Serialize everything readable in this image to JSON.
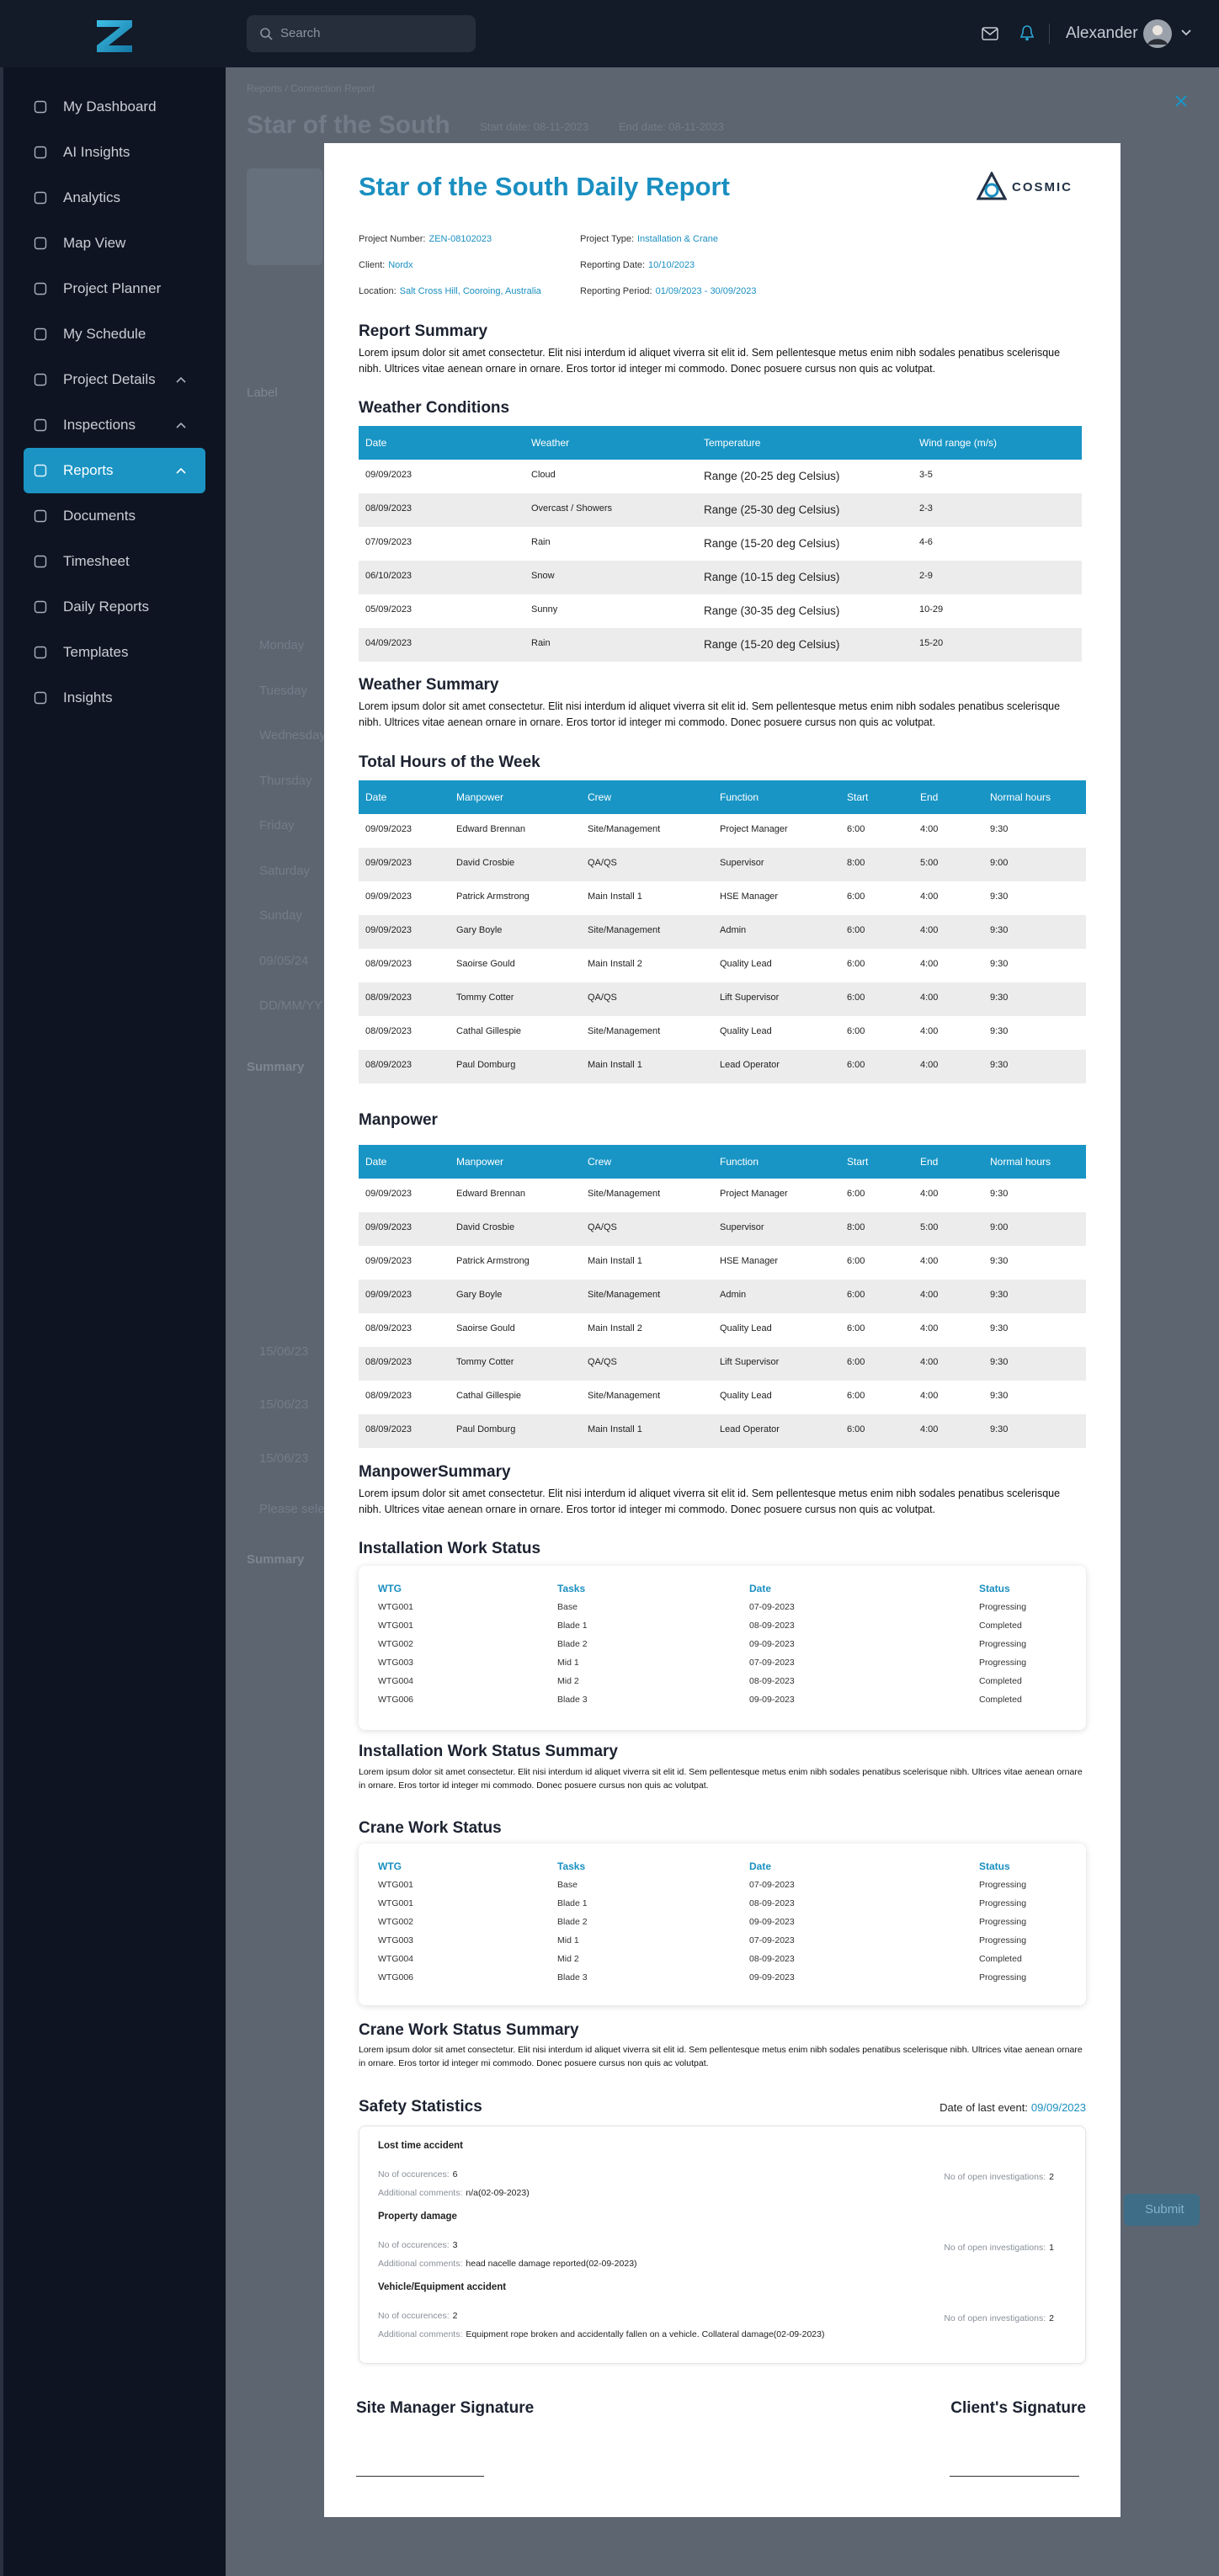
{
  "topbar": {
    "search_placeholder": "Search",
    "user_name": "Alexander"
  },
  "sidebar": {
    "items": [
      {
        "label": "My Dashboard"
      },
      {
        "label": "AI Insights"
      },
      {
        "label": "Analytics"
      },
      {
        "label": "Map View"
      },
      {
        "label": "Project Planner"
      },
      {
        "label": "My Schedule"
      },
      {
        "label": "Project Details",
        "expandable": true
      },
      {
        "label": "Inspections",
        "expandable": true
      },
      {
        "label": "Reports",
        "expandable": true,
        "active": true
      },
      {
        "label": "Documents"
      },
      {
        "label": "Timesheet"
      },
      {
        "label": "Daily Reports"
      },
      {
        "label": "Templates"
      },
      {
        "label": "Insights"
      }
    ]
  },
  "background": {
    "breadcrumb": "Reports / Connection Report",
    "title": "Star of the South",
    "start_date": "Start date: 08-11-2023",
    "end_date": "End date: 08-11-2023",
    "label": "Label",
    "days": [
      "Monday",
      "Tuesday",
      "Wednesday",
      "Thursday",
      "Friday",
      "Saturday",
      "Sunday",
      "09/05/24",
      "DD/MM/YY"
    ],
    "summary_headings": [
      "Summary",
      "Summary"
    ],
    "dates": [
      "15/06/23",
      "15/06/23",
      "15/06/23"
    ],
    "select_placeholder": "Please select",
    "submit": "Submit"
  },
  "report": {
    "title": "Star of the South Daily Report",
    "logo_text": "COSMIC",
    "info": [
      {
        "label": "Project Number:",
        "value": "ZEN-08102023"
      },
      {
        "label": "Project Type:",
        "value": "Installation & Crane"
      },
      {
        "label": "Client:",
        "value": "Nordx"
      },
      {
        "label": "Reporting Date:",
        "value": "10/10/2023"
      },
      {
        "label": "Location:",
        "value": "Salt Cross Hill, Cooroing, Australia"
      },
      {
        "label": "Reporting Period:",
        "value": "01/09/2023 - 30/09/2023"
      }
    ],
    "report_summary": {
      "heading": "Report Summary",
      "text": "Lorem ipsum dolor sit amet consectetur. Elit nisi interdum id aliquet viverra sit elit id. Sem pellentesque metus enim nibh sodales penatibus scelerisque nibh. Ultrices vitae aenean ornare in ornare. Eros tortor id integer mi commodo. Donec posuere cursus non quis ac volutpat."
    },
    "weather": {
      "heading": "Weather Conditions",
      "columns": [
        "Date",
        "Weather",
        "Temperature",
        "Wind range (m/s)"
      ],
      "rows": [
        [
          "09/09/2023",
          "Cloud",
          "Range (20-25 deg Celsius)",
          "3-5"
        ],
        [
          "08/09/2023",
          "Overcast / Showers",
          "Range (25-30 deg Celsius)",
          "2-3"
        ],
        [
          "07/09/2023",
          "Rain",
          "Range (15-20 deg Celsius)",
          "4-6"
        ],
        [
          "06/10/2023",
          "Snow",
          "Range (10-15 deg Celsius)",
          "2-9"
        ],
        [
          "05/09/2023",
          "Sunny",
          "Range (30-35 deg Celsius)",
          "10-29"
        ],
        [
          "04/09/2023",
          "Rain",
          "Range (15-20 deg Celsius)",
          "15-20"
        ]
      ]
    },
    "weather_summary": {
      "heading": "Weather Summary",
      "text": "Lorem ipsum dolor sit amet consectetur. Elit nisi interdum id aliquet viverra sit elit id. Sem pellentesque metus enim nibh sodales penatibus scelerisque nibh. Ultrices vitae aenean ornare in ornare. Eros tortor id integer mi commodo. Donec posuere cursus non quis ac volutpat."
    },
    "hours": {
      "heading": "Total Hours of the Week",
      "columns": [
        "Date",
        "Manpower",
        "Crew",
        "Function",
        "Start",
        "End",
        "Normal hours"
      ],
      "rows": [
        [
          "09/09/2023",
          "Edward Brennan",
          "Site/Management",
          "Project Manager",
          "6:00",
          "4:00",
          "9:30"
        ],
        [
          "09/09/2023",
          "David Crosbie",
          "QA/QS",
          "Supervisor",
          "8:00",
          "5:00",
          "9:00"
        ],
        [
          "09/09/2023",
          "Patrick Armstrong",
          "Main Install 1",
          "HSE Manager",
          "6:00",
          "4:00",
          "9:30"
        ],
        [
          "09/09/2023",
          "Gary Boyle",
          "Site/Management",
          "Admin",
          "6:00",
          "4:00",
          "9:30"
        ],
        [
          "08/09/2023",
          "Saoirse Gould",
          "Main Install 2",
          "Quality Lead",
          "6:00",
          "4:00",
          "9:30"
        ],
        [
          "08/09/2023",
          "Tommy Cotter",
          "QA/QS",
          "Lift Supervisor",
          "6:00",
          "4:00",
          "9:30"
        ],
        [
          "08/09/2023",
          "Cathal Gillespie",
          "Site/Management",
          "Quality Lead",
          "6:00",
          "4:00",
          "9:30"
        ],
        [
          "08/09/2023",
          "Paul Domburg",
          "Main Install 1",
          "Lead Operator",
          "6:00",
          "4:00",
          "9:30"
        ]
      ]
    },
    "manpower": {
      "heading": "Manpower",
      "columns": [
        "Date",
        "Manpower",
        "Crew",
        "Function",
        "Start",
        "End",
        "Normal hours"
      ],
      "rows": [
        [
          "09/09/2023",
          "Edward Brennan",
          "Site/Management",
          "Project Manager",
          "6:00",
          "4:00",
          "9:30"
        ],
        [
          "09/09/2023",
          "David Crosbie",
          "QA/QS",
          "Supervisor",
          "8:00",
          "5:00",
          "9:00"
        ],
        [
          "09/09/2023",
          "Patrick Armstrong",
          "Main Install 1",
          "HSE Manager",
          "6:00",
          "4:00",
          "9:30"
        ],
        [
          "09/09/2023",
          "Gary Boyle",
          "Site/Management",
          "Admin",
          "6:00",
          "4:00",
          "9:30"
        ],
        [
          "08/09/2023",
          "Saoirse Gould",
          "Main Install 2",
          "Quality Lead",
          "6:00",
          "4:00",
          "9:30"
        ],
        [
          "08/09/2023",
          "Tommy Cotter",
          "QA/QS",
          "Lift Supervisor",
          "6:00",
          "4:00",
          "9:30"
        ],
        [
          "08/09/2023",
          "Cathal Gillespie",
          "Site/Management",
          "Quality Lead",
          "6:00",
          "4:00",
          "9:30"
        ],
        [
          "08/09/2023",
          "Paul Domburg",
          "Main Install 1",
          "Lead Operator",
          "6:00",
          "4:00",
          "9:30"
        ]
      ]
    },
    "manpower_summary": {
      "heading": "ManpowerSummary",
      "text": "Lorem ipsum dolor sit amet consectetur. Elit nisi interdum id aliquet viverra sit elit id. Sem pellentesque metus enim nibh sodales penatibus scelerisque nibh. Ultrices vitae aenean ornare in ornare. Eros tortor id integer mi commodo. Donec posuere cursus non quis ac volutpat."
    },
    "installation": {
      "heading": "Installation Work Status",
      "columns": [
        "WTG",
        "Tasks",
        "Date",
        "Status"
      ],
      "rows": [
        [
          "WTG001",
          "Base",
          "07-09-2023",
          "Progressing"
        ],
        [
          "WTG001",
          "Blade 1",
          "08-09-2023",
          "Completed"
        ],
        [
          "WTG002",
          "Blade 2",
          "09-09-2023",
          "Progressing"
        ],
        [
          "WTG003",
          "Mid 1",
          "07-09-2023",
          "Progressing"
        ],
        [
          "WTG004",
          "Mid 2",
          "08-09-2023",
          "Completed"
        ],
        [
          "WTG006",
          "Blade 3",
          "09-09-2023",
          "Completed"
        ]
      ]
    },
    "installation_summary": {
      "heading": "Installation Work Status Summary",
      "text": "Lorem ipsum dolor sit amet consectetur. Elit nisi interdum id aliquet viverra sit elit id. Sem pellentesque metus enim nibh sodales penatibus scelerisque nibh. Ultrices vitae aenean ornare in ornare. Eros tortor id integer mi commodo. Donec posuere cursus non quis ac volutpat."
    },
    "crane": {
      "heading": "Crane Work Status",
      "columns": [
        "WTG",
        "Tasks",
        "Date",
        "Status"
      ],
      "rows": [
        [
          "WTG001",
          "Base",
          "07-09-2023",
          "Progressing"
        ],
        [
          "WTG001",
          "Blade 1",
          "08-09-2023",
          "Progressing"
        ],
        [
          "WTG002",
          "Blade 2",
          "09-09-2023",
          "Progressing"
        ],
        [
          "WTG003",
          "Mid 1",
          "07-09-2023",
          "Progressing"
        ],
        [
          "WTG004",
          "Mid 2",
          "08-09-2023",
          "Completed"
        ],
        [
          "WTG006",
          "Blade 3",
          "09-09-2023",
          "Progressing"
        ]
      ]
    },
    "crane_summary": {
      "heading": "Crane Work Status Summary",
      "text": "Lorem ipsum dolor sit amet consectetur. Elit nisi interdum id aliquet viverra sit elit id. Sem pellentesque metus enim nibh sodales penatibus scelerisque nibh. Ultrices vitae aenean ornare in ornare. Eros tortor id integer mi commodo. Donec posuere cursus non quis ac volutpat."
    },
    "safety": {
      "heading": "Safety Statistics",
      "last_event_label": "Date of last event:",
      "last_event": "09/09/2023",
      "items": [
        {
          "title": "Lost time accident",
          "occurrences_label": "No of occurences:",
          "occurrences": 6,
          "comments_label": "Additional comments:",
          "comments": "n/a(02-09-2023)",
          "investigations_label": "No of open investigations:",
          "investigations": 2
        },
        {
          "title": "Property damage",
          "occurrences_label": "No of occurences:",
          "occurrences": 3,
          "comments_label": "Additional comments:",
          "comments": "head nacelle damage reported(02-09-2023)",
          "investigations_label": "No of open investigations:",
          "investigations": 1
        },
        {
          "title": "Vehicle/Equipment accident",
          "occurrences_label": "No of occurences:",
          "occurrences": 2,
          "comments_label": "Additional comments:",
          "comments": "Equipment rope broken and accidentally fallen on a vehicle. Collateral damage(02-09-2023)",
          "investigations_label": "No of open investigations:",
          "investigations": 2
        }
      ]
    },
    "signatures": {
      "site_manager": "Site Manager Signature",
      "client": "Client's Signature"
    }
  }
}
